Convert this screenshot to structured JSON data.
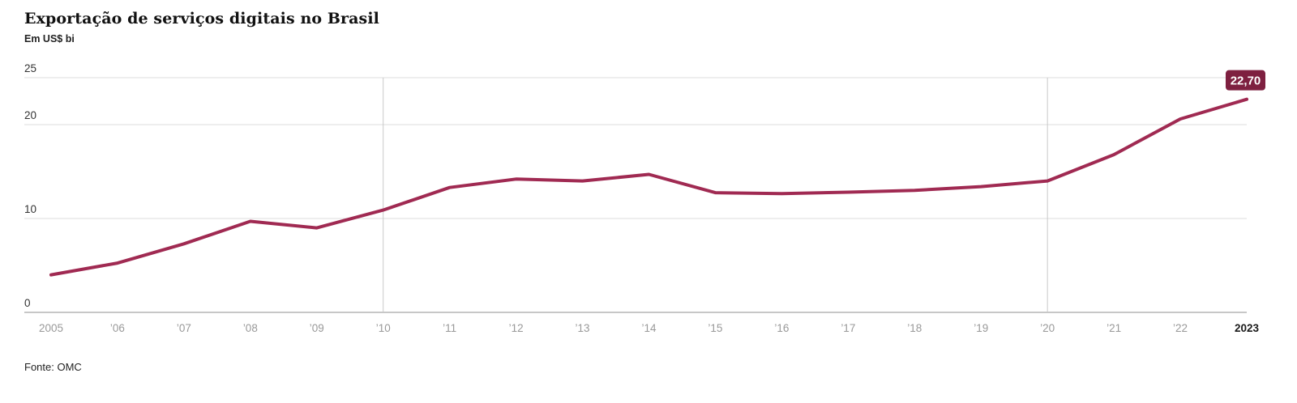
{
  "header": {
    "title": "Exportação de serviços digitais no Brasil",
    "subtitle": "Em US$ bi"
  },
  "footer": {
    "source": "Fonte: OMC"
  },
  "chart_data": {
    "type": "line",
    "title": "Exportação de serviços digitais no Brasil",
    "subtitle": "Em US$ bi",
    "ylabel": "Em US$ bi",
    "xlabel": "",
    "x": [
      2005,
      2006,
      2007,
      2008,
      2009,
      2010,
      2011,
      2012,
      2013,
      2014,
      2015,
      2016,
      2017,
      2018,
      2019,
      2020,
      2021,
      2022,
      2023
    ],
    "x_tick_labels": [
      "2005",
      "’06",
      "’07",
      "’08",
      "’09",
      "’10",
      "’11",
      "’12",
      "’13",
      "’14",
      "’15",
      "’16",
      "’17",
      "’18",
      "’19",
      "’20",
      "’21",
      "’22",
      "2023"
    ],
    "emphasized_x_tick": "2023",
    "series": [
      {
        "name": "Exportação de serviços digitais no Brasil (US$ bi)",
        "values": [
          4.0,
          5.25,
          7.3,
          9.7,
          9.0,
          10.9,
          13.3,
          14.2,
          14.0,
          14.7,
          12.75,
          12.65,
          12.8,
          13.0,
          13.4,
          14.0,
          16.8,
          20.6,
          22.7
        ]
      }
    ],
    "end_label": "22,70",
    "ylim": [
      0,
      25
    ],
    "y_gridline_values": [
      25,
      20,
      10,
      0
    ],
    "y_gridline_labels": [
      "25",
      "20",
      "10",
      "0"
    ],
    "x_gridline_years": [
      2010,
      2020
    ],
    "grid": "horizontal gridlines at 0/10/20/25 plus vertical rules at 2010 and 2020",
    "legend_position": "none",
    "colors": {
      "line": "#a02a52",
      "badge": "#7e2040",
      "badge_text": "#ffffff",
      "grid": "#dcdcdc",
      "vgrid": "#c9c9c9",
      "axis": "#8f8f8f",
      "tick": "#999999",
      "tick_emphasis": "#1a1a1a",
      "y_tick": "#333333"
    }
  }
}
